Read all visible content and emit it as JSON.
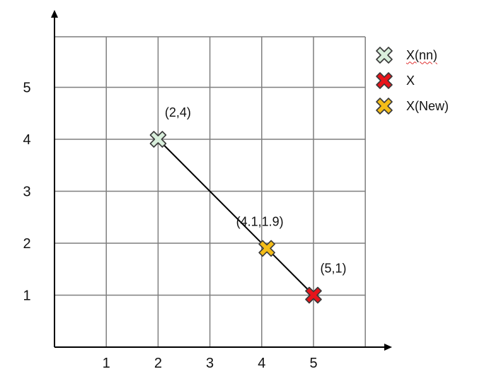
{
  "chart_data": {
    "type": "scatter",
    "title": "",
    "xlabel": "",
    "ylabel": "",
    "xlim": [
      0,
      6
    ],
    "ylim": [
      0,
      6
    ],
    "grid": true,
    "x_ticks": [
      1,
      2,
      3,
      4,
      5
    ],
    "y_ticks": [
      1,
      2,
      3,
      4,
      5
    ],
    "legend_position": "right",
    "series": [
      {
        "name": "X(nn)",
        "color": "#d9efdc",
        "marker": "x",
        "points": [
          {
            "x": 2,
            "y": 4,
            "label": "(2,4)"
          }
        ]
      },
      {
        "name": "X",
        "color": "#e8141b",
        "marker": "x",
        "points": [
          {
            "x": 5,
            "y": 1,
            "label": "(5,1)"
          }
        ]
      },
      {
        "name": "X(New)",
        "color": "#f4bd18",
        "marker": "x",
        "points": [
          {
            "x": 4.1,
            "y": 1.9,
            "label": "(4.1,1.9)"
          }
        ]
      }
    ],
    "connecting_line": {
      "from": {
        "x": 2,
        "y": 4
      },
      "to": {
        "x": 5,
        "y": 1
      }
    }
  }
}
